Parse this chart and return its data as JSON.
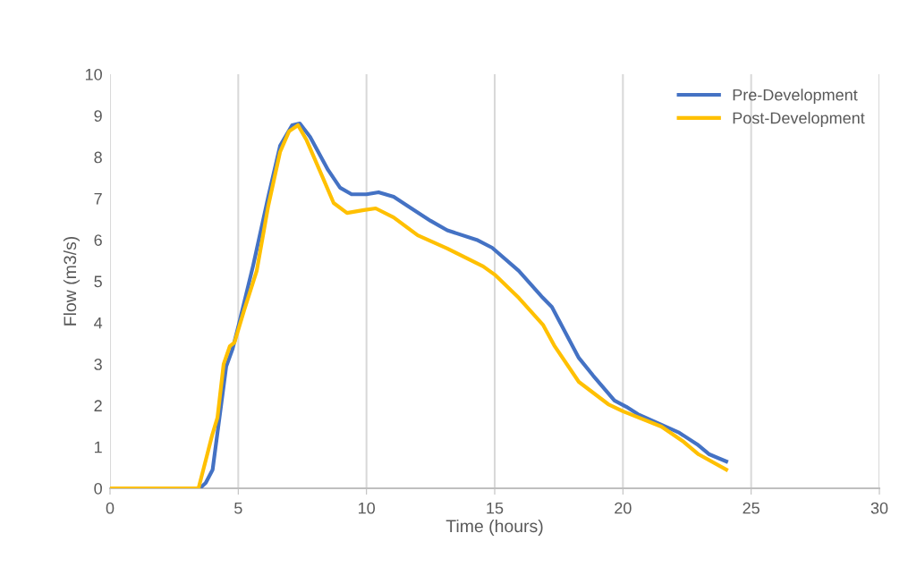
{
  "chart_data": {
    "type": "line",
    "xlabel": "Time (hours)",
    "ylabel": "Flow (m3/s)",
    "xlim": [
      0,
      30
    ],
    "xticks": [
      0,
      5,
      10,
      15,
      20,
      25,
      30
    ],
    "ylim": [
      0,
      10
    ],
    "yticks": [
      0,
      1,
      2,
      3,
      4,
      5,
      6,
      7,
      8,
      9,
      10
    ],
    "grid": "x",
    "legend": "top right",
    "marker": "none",
    "line_style": "solid",
    "series": [
      {
        "name": "Pre-Development",
        "color": "#4472c4",
        "x": [
          0,
          3.5,
          3.73,
          4.0,
          4.53,
          4.78,
          5.02,
          5.58,
          6.17,
          6.63,
          7.1,
          7.4,
          7.8,
          8.5,
          8.97,
          9.42,
          10.0,
          10.47,
          11.06,
          11.75,
          12.5,
          13.15,
          14.3,
          14.9,
          15.94,
          16.88,
          17.23,
          18.28,
          18.84,
          19.67,
          20.13,
          20.58,
          22.2,
          22.9,
          23.37,
          24.03
        ],
        "values": [
          0,
          0,
          0.13,
          0.45,
          2.94,
          3.37,
          3.95,
          5.38,
          7.04,
          8.27,
          8.77,
          8.81,
          8.49,
          7.69,
          7.26,
          7.1,
          7.1,
          7.15,
          7.04,
          6.76,
          6.46,
          6.23,
          6.0,
          5.81,
          5.25,
          4.6,
          4.38,
          3.15,
          2.72,
          2.12,
          1.97,
          1.79,
          1.34,
          1.06,
          0.82,
          0.65
        ]
      },
      {
        "name": "Post-Development",
        "color": "#ffc000",
        "x": [
          0,
          3.45,
          3.8,
          3.98,
          4.19,
          4.43,
          4.67,
          4.85,
          5.23,
          5.72,
          6.17,
          6.63,
          6.98,
          7.33,
          7.67,
          8.27,
          8.72,
          9.24,
          9.9,
          10.36,
          11.06,
          12.0,
          13.15,
          14.55,
          15.0,
          15.94,
          16.88,
          17.34,
          18.28,
          19.43,
          20.0,
          21.5,
          22.33,
          22.95,
          24.03
        ],
        "values": [
          0,
          0,
          0.84,
          1.28,
          1.71,
          3.0,
          3.43,
          3.52,
          4.3,
          5.25,
          6.82,
          8.12,
          8.62,
          8.77,
          8.4,
          7.54,
          6.89,
          6.65,
          6.72,
          6.76,
          6.54,
          6.11,
          5.79,
          5.36,
          5.16,
          4.6,
          3.95,
          3.43,
          2.57,
          2.03,
          1.86,
          1.49,
          1.14,
          0.82,
          0.45
        ]
      }
    ]
  }
}
